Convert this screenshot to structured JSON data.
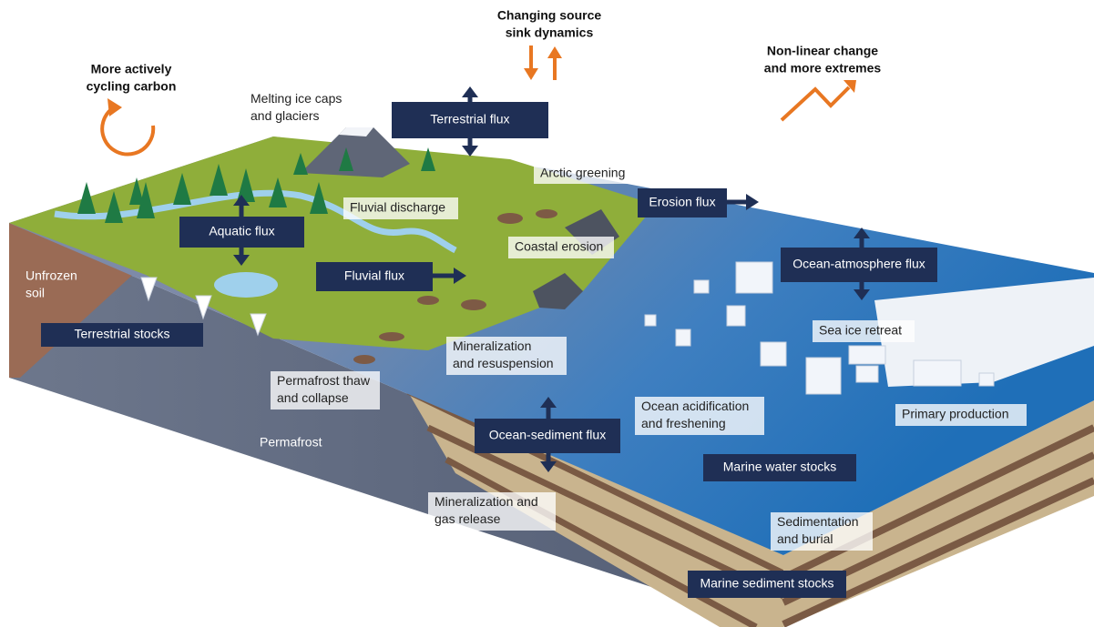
{
  "trends": [
    {
      "lines": [
        "More actively",
        "cycling carbon"
      ]
    },
    {
      "lines": [
        "Changing source",
        "sink dynamics"
      ]
    },
    {
      "lines": [
        "Non-linear change",
        "and more extremes"
      ]
    }
  ],
  "fluxes": [
    "Terrestrial flux",
    "Aquatic flux",
    "Fluvial flux",
    "Erosion flux",
    "Ocean-atmosphere flux",
    "Ocean-sediment flux"
  ],
  "stocks": [
    "Terrestrial stocks",
    "Marine water stocks",
    "Marine sediment stocks"
  ],
  "processes": [
    {
      "lines": [
        "Melting ice caps",
        "and glaciers"
      ]
    },
    {
      "lines": [
        "Arctic greening"
      ]
    },
    {
      "lines": [
        "Fluvial discharge"
      ]
    },
    {
      "lines": [
        "Coastal erosion"
      ]
    },
    {
      "lines": [
        "Mineralization",
        "and resuspension"
      ]
    },
    {
      "lines": [
        "Permafrost thaw",
        "and collapse"
      ]
    },
    {
      "lines": [
        "Ocean acidification",
        "and freshening"
      ]
    },
    {
      "lines": [
        "Sea ice retreat"
      ]
    },
    {
      "lines": [
        "Primary production"
      ]
    },
    {
      "lines": [
        "Mineralization and",
        "gas release"
      ]
    },
    {
      "lines": [
        "Sedimentation",
        "and burial"
      ]
    }
  ],
  "soil_labels": [
    {
      "lines": [
        "Unfrozen",
        "soil"
      ]
    },
    {
      "lines": [
        "Permafrost"
      ]
    }
  ]
}
